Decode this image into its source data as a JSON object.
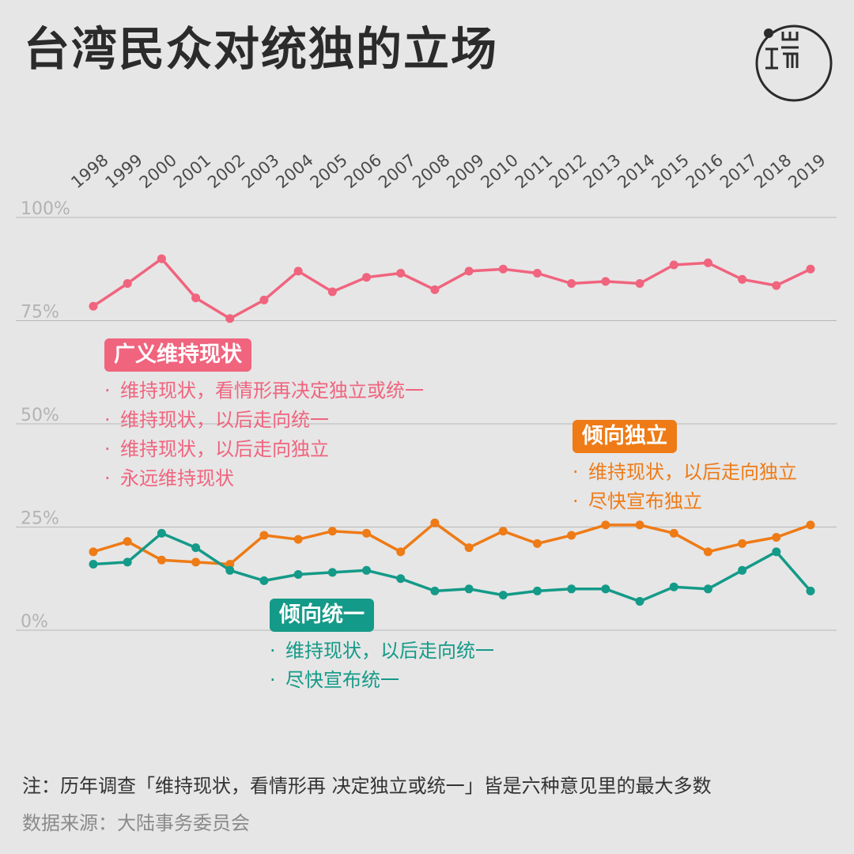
{
  "title": "台湾民众对统独的立场",
  "logo_text": "端",
  "chart_data": {
    "type": "line",
    "x": [
      "1998",
      "1999",
      "2000",
      "2001",
      "2002",
      "2003",
      "2004",
      "2005",
      "2006",
      "2007",
      "2008",
      "2009",
      "2010",
      "2011",
      "2012",
      "2013",
      "2014",
      "2015",
      "2016",
      "2017",
      "2018",
      "2019"
    ],
    "y_ticks": [
      "100%",
      "75%",
      "50%",
      "25%",
      "0%"
    ],
    "y_tick_values": [
      100,
      75,
      50,
      25,
      0
    ],
    "ylim": [
      0,
      100
    ],
    "grid": true,
    "series": [
      {
        "name": "广义维持现状",
        "color": "#f0647e",
        "values": [
          78.5,
          84,
          90,
          80.5,
          75.5,
          80,
          87,
          82,
          85.5,
          86.5,
          82.5,
          87,
          87.5,
          86.5,
          84,
          84.5,
          84,
          88.5,
          89,
          85,
          83.5,
          87.5
        ]
      },
      {
        "name": "倾向独立",
        "color": "#ee7b16",
        "values": [
          19,
          21.5,
          17,
          16.5,
          16,
          23,
          22,
          24,
          23.5,
          19,
          26,
          20,
          24,
          21,
          23,
          25.5,
          25.5,
          23.5,
          19,
          21,
          22.5,
          25.5
        ]
      },
      {
        "name": "倾向统一",
        "color": "#149a88",
        "values": [
          16,
          16.5,
          23.5,
          20,
          14.5,
          12,
          13.5,
          14,
          14.5,
          12.5,
          9.5,
          10,
          8.5,
          9.5,
          10,
          10,
          7,
          10.5,
          10,
          14.5,
          19,
          9.5
        ]
      }
    ]
  },
  "legends": [
    {
      "label": "广义维持现状",
      "color": "#f0647e",
      "bullet": "·",
      "items": [
        "维持现状，看情形再决定独立或统一",
        "维持现状，以后走向统一",
        "维持现状，以后走向独立",
        "永远维持现状"
      ]
    },
    {
      "label": "倾向独立",
      "color": "#ee7b16",
      "bullet": "·",
      "items": [
        "维持现状，以后走向独立",
        "尽快宣布独立"
      ]
    },
    {
      "label": "倾向统一",
      "color": "#149a88",
      "bullet": "·",
      "items": [
        "维持现状，以后走向统一",
        "尽快宣布统一"
      ]
    }
  ],
  "note": "注：历年调查「维持现状，看情形再 决定独立或统一」皆是六种意见里的最大多数",
  "source": "数据来源：大陆事务委员会"
}
